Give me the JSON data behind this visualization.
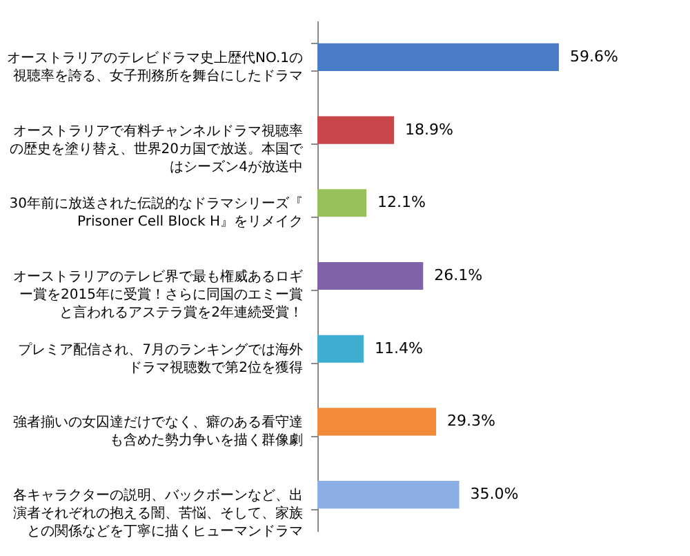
{
  "chart_data": {
    "type": "bar",
    "orientation": "horizontal",
    "categories": [
      "オーストラリアのテレビドラマ史上歴代NO.1の視聴率を誇る、女子刑務所を舞台にしたドラマ",
      "オーストラリアで有料チャンネルドラマ視聴率の歴史を塗り替え、世界20カ国で放送。本国ではシーズン4が放送中",
      "30年前に放送された伝説的なドラマシリーズ『Prisoner Cell Block H』をリメイク",
      "オーストラリアのテレビ界で最も権威あるロギー賞を2015年に受賞！さらに同国のエミー賞と言われるアステラ賞を2年連続受賞！",
      "プレミア配信され、7月のランキングでは海外ドラマ視聴数で第2位を獲得",
      "強者揃いの女囚達だけでなく、癖のある看守達も含めた勢力争いを描く群像劇",
      "各キャラクターの説明、バックボーンなど、出演者それぞれの抱える闇、苦悩、そして、家族との関係などを丁寧に描くヒューマンドラマ"
    ],
    "values": [
      59.6,
      18.9,
      12.1,
      26.1,
      11.4,
      29.3,
      35.0
    ],
    "value_labels": [
      "59.6%",
      "18.9%",
      "12.1%",
      "26.1%",
      "11.4%",
      "29.3%",
      "35.0%"
    ],
    "colors": [
      "#4a7cc8",
      "#c9474b",
      "#97c05a",
      "#7f62a8",
      "#40aed0",
      "#f18a3a",
      "#8eaee6"
    ]
  }
}
